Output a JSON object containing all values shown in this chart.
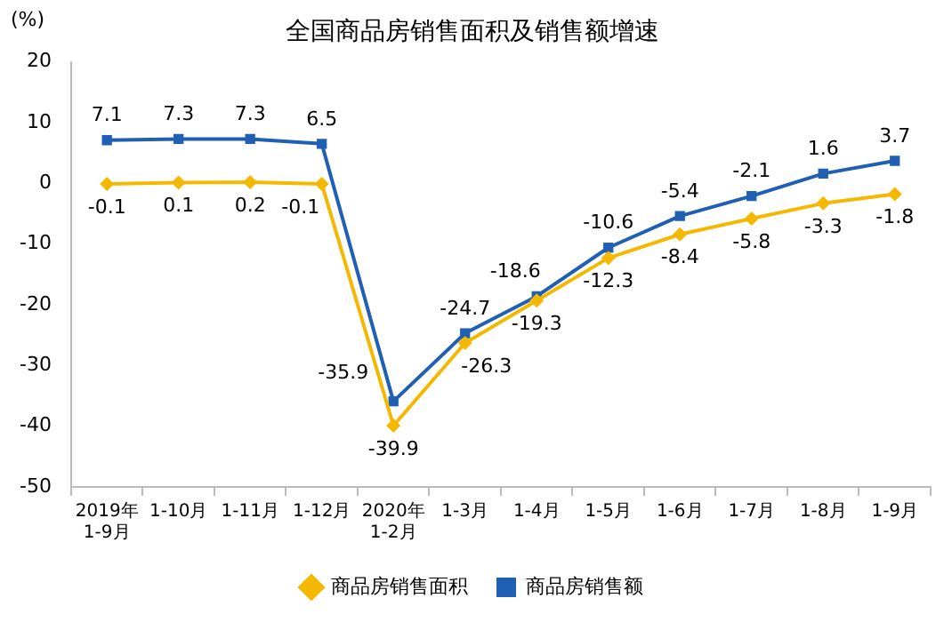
{
  "chart_data": {
    "type": "line",
    "title": "全国商品房销售面积及销售额增速",
    "ylabel": "(%)",
    "categories": [
      "2019年\n1-9月",
      "1-10月",
      "1-11月",
      "1-12月",
      "2020年\n1-2月",
      "1-3月",
      "1-4月",
      "1-5月",
      "1-6月",
      "1-7月",
      "1-8月",
      "1-9月"
    ],
    "series": [
      {
        "name": "商品房销售面积",
        "color": "#f5b800",
        "marker": "diamond",
        "values": [
          -0.1,
          0.1,
          0.2,
          -0.1,
          -39.9,
          -26.3,
          -19.3,
          -12.3,
          -8.4,
          -5.8,
          -3.3,
          -1.8
        ]
      },
      {
        "name": "商品房销售额",
        "color": "#1f5fb4",
        "marker": "square",
        "values": [
          7.1,
          7.3,
          7.3,
          6.5,
          -35.9,
          -24.7,
          -18.6,
          -10.6,
          -5.4,
          -2.1,
          1.6,
          3.7
        ]
      }
    ],
    "ylim": [
      -50,
      20
    ],
    "yticks": [
      -50,
      -40,
      -30,
      -20,
      -10,
      0,
      10,
      20
    ],
    "grid": false,
    "legend": "bottom",
    "data_labels": true,
    "line_style": "solid"
  }
}
